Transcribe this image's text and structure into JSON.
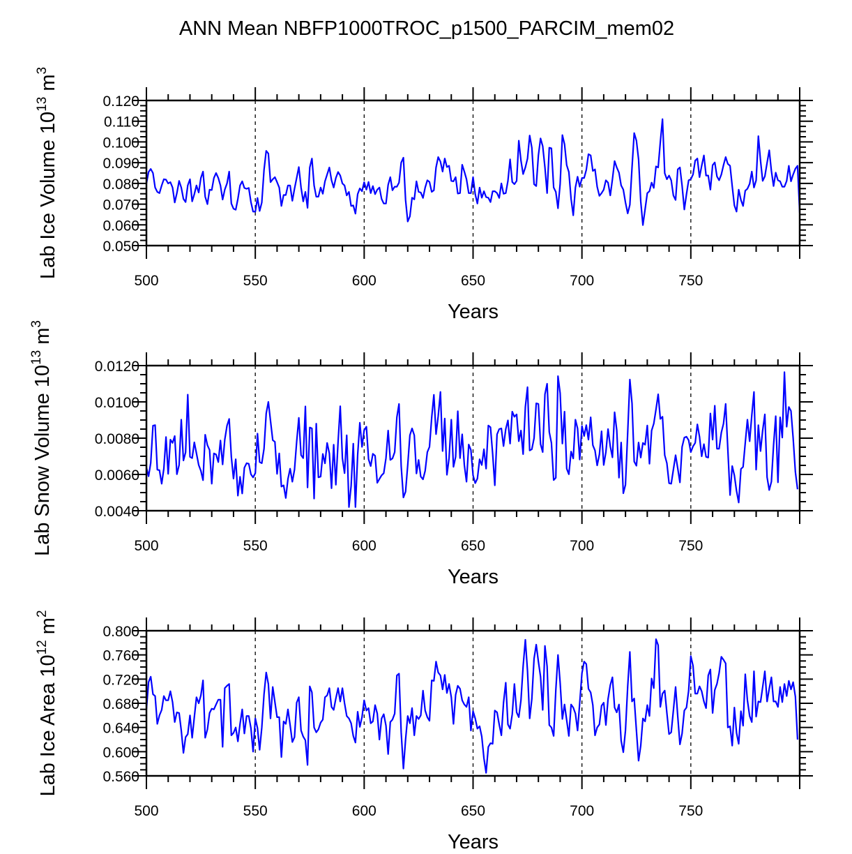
{
  "title": "ANN Mean NBFP1000TROC_p1500_PARCIM_mem02",
  "line_color": "#0000ff",
  "chart_data": [
    {
      "type": "line",
      "ylabel_main": "Lab Ice Volume 10",
      "ylabel_exp": "13",
      "ylabel_unit": " m",
      "ylabel_unit_exp": "3",
      "xlabel": "Years",
      "xlim": [
        500,
        800
      ],
      "ylim": [
        0.05,
        0.12
      ],
      "x_start": 500,
      "xticks": [
        "500",
        "550",
        "600",
        "650",
        "700",
        "750"
      ],
      "yticks": [
        "0.050",
        "0.060",
        "0.070",
        "0.080",
        "0.090",
        "0.100",
        "0.110",
        "0.120"
      ],
      "y_major": 0.01,
      "y_minor": 0.0025,
      "values": [
        0.08,
        0.0855,
        0.087,
        0.085,
        0.078,
        0.0759,
        0.0753,
        0.079,
        0.082,
        0.0818,
        0.08,
        0.0806,
        0.078,
        0.0708,
        0.0753,
        0.0812,
        0.078,
        0.0725,
        0.071,
        0.079,
        0.082,
        0.0713,
        0.0748,
        0.079,
        0.0756,
        0.0826,
        0.0857,
        0.0736,
        0.07,
        0.077,
        0.0768,
        0.0826,
        0.085,
        0.0826,
        0.079,
        0.0722,
        0.077,
        0.08,
        0.0857,
        0.0703,
        0.0678,
        0.0673,
        0.0725,
        0.079,
        0.081,
        0.0778,
        0.0774,
        0.0778,
        0.071,
        0.0664,
        0.0664,
        0.073,
        0.0667,
        0.0708,
        0.0865,
        0.0957,
        0.0944,
        0.0806,
        0.082,
        0.083,
        0.0806,
        0.078,
        0.0691,
        0.0744,
        0.0744,
        0.079,
        0.079,
        0.0716,
        0.0774,
        0.0826,
        0.0879,
        0.078,
        0.0713,
        0.0759,
        0.0682,
        0.0877,
        0.092,
        0.079,
        0.0736,
        0.0736,
        0.078,
        0.075,
        0.081,
        0.0843,
        0.0877,
        0.0815,
        0.078,
        0.0826,
        0.0855,
        0.0838,
        0.08,
        0.079,
        0.0742,
        0.0759,
        0.0691,
        0.0694,
        0.0654,
        0.0748,
        0.0776,
        0.0762,
        0.0806,
        0.077,
        0.0807,
        0.0753,
        0.0787,
        0.0748,
        0.077,
        0.078,
        0.0725,
        0.0703,
        0.0703,
        0.0793,
        0.083,
        0.0767,
        0.0784,
        0.0784,
        0.0804,
        0.09,
        0.0924,
        0.072,
        0.0616,
        0.0641,
        0.0731,
        0.0723,
        0.081,
        0.0759,
        0.0756,
        0.073,
        0.078,
        0.0815,
        0.0807,
        0.0759,
        0.0767,
        0.0877,
        0.0927,
        0.0905,
        0.0857,
        0.092,
        0.0879,
        0.0885,
        0.0812,
        0.081,
        0.083,
        0.0751,
        0.0753,
        0.089,
        0.0857,
        0.082,
        0.0753,
        0.0753,
        0.083,
        0.0748,
        0.0703,
        0.078,
        0.0731,
        0.0762,
        0.0734,
        0.0731,
        0.071,
        0.0762,
        0.0762,
        0.0753,
        0.073,
        0.08,
        0.075,
        0.0753,
        0.0812,
        0.0916,
        0.0807,
        0.0796,
        0.0812,
        0.1006,
        0.091,
        0.0845,
        0.0877,
        0.092,
        0.1031,
        0.0972,
        0.0796,
        0.0787,
        0.0935,
        0.1017,
        0.098,
        0.0877,
        0.0753,
        0.0972,
        0.0969,
        0.078,
        0.0759,
        0.068,
        0.0798,
        0.1033,
        0.0989,
        0.0888,
        0.0855,
        0.0725,
        0.0646,
        0.078,
        0.0832,
        0.0784,
        0.0826,
        0.0826,
        0.0865,
        0.0941,
        0.0935,
        0.086,
        0.0868,
        0.0784,
        0.074,
        0.0753,
        0.077,
        0.0815,
        0.0804,
        0.0742,
        0.082,
        0.0908,
        0.0877,
        0.0852,
        0.079,
        0.077,
        0.0708,
        0.0655,
        0.0697,
        0.0877,
        0.1043,
        0.1006,
        0.0916,
        0.0713,
        0.0599,
        0.0674,
        0.0753,
        0.0762,
        0.0804,
        0.0778,
        0.0882,
        0.0877,
        0.1,
        0.111,
        0.0849,
        0.082,
        0.0838,
        0.0815,
        0.0742,
        0.072,
        0.0868,
        0.0877,
        0.0789,
        0.0674,
        0.0748,
        0.0815,
        0.082,
        0.0843,
        0.091,
        0.092,
        0.083,
        0.0885,
        0.0935,
        0.0838,
        0.0838,
        0.077,
        0.0888,
        0.0901,
        0.0834,
        0.0815,
        0.0843,
        0.0888,
        0.0927,
        0.0894,
        0.0885,
        0.0787,
        0.0694,
        0.0664,
        0.077,
        0.072,
        0.0691,
        0.0765,
        0.0774,
        0.0798,
        0.0857,
        0.078,
        0.0815,
        0.1028,
        0.091,
        0.0812,
        0.0834,
        0.0899,
        0.096,
        0.086,
        0.0787,
        0.0852,
        0.0815,
        0.081,
        0.0784,
        0.0784,
        0.0812,
        0.0885,
        0.081,
        0.0843,
        0.0871,
        0.0885,
        0.0658
      ]
    },
    {
      "type": "line",
      "ylabel_main": "Lab Snow Volume 10",
      "ylabel_exp": "13",
      "ylabel_unit": " m",
      "ylabel_unit_exp": "3",
      "xlabel": "Years",
      "xlim": [
        500,
        800
      ],
      "ylim": [
        0.004,
        0.012
      ],
      "x_start": 500,
      "xticks": [
        "500",
        "550",
        "600",
        "650",
        "700",
        "750"
      ],
      "yticks": [
        "0.0040",
        "0.0060",
        "0.0080",
        "0.0100",
        "0.0120"
      ],
      "y_major": 0.002,
      "y_minor": 0.0005,
      "values": [
        0.00638,
        0.0059,
        0.00664,
        0.00869,
        0.00872,
        0.00626,
        0.00623,
        0.00549,
        0.00632,
        0.00806,
        0.00603,
        0.00792,
        0.00774,
        0.00812,
        0.00601,
        0.00652,
        0.00902,
        0.00677,
        0.00722,
        0.0104,
        0.00697,
        0.0069,
        0.00777,
        0.00716,
        0.00652,
        0.0062,
        0.00568,
        0.00819,
        0.00761,
        0.00735,
        0.00549,
        0.00716,
        0.0071,
        0.00668,
        0.00787,
        0.00655,
        0.00792,
        0.00869,
        0.00906,
        0.00697,
        0.00577,
        0.00684,
        0.00483,
        0.00587,
        0.00495,
        0.00637,
        0.00662,
        0.00659,
        0.00601,
        0.00584,
        0.00607,
        0.00825,
        0.00668,
        0.00662,
        0.00742,
        0.00936,
        0.01,
        0.00895,
        0.00789,
        0.0078,
        0.00603,
        0.00716,
        0.00533,
        0.0054,
        0.0047,
        0.00575,
        0.00632,
        0.0056,
        0.00626,
        0.0078,
        0.00912,
        0.00707,
        0.0069,
        0.00975,
        0.00528,
        0.00859,
        0.00854,
        0.00467,
        0.0088,
        0.00584,
        0.00588,
        0.00713,
        0.00661,
        0.00774,
        0.00716,
        0.00524,
        0.00764,
        0.00543,
        0.0078,
        0.00976,
        0.0069,
        0.00607,
        0.00816,
        0.0042,
        0.00537,
        0.0077,
        0.0042,
        0.0071,
        0.00885,
        0.00752,
        0.00844,
        0.00863,
        0.00684,
        0.00646,
        0.00714,
        0.00703,
        0.00554,
        0.00575,
        0.00595,
        0.00607,
        0.0069,
        0.00842,
        0.0068,
        0.00688,
        0.00723,
        0.00915,
        0.00989,
        0.00646,
        0.00473,
        0.00505,
        0.00652,
        0.00816,
        0.00854,
        0.00816,
        0.00605,
        0.0068,
        0.00588,
        0.00573,
        0.0062,
        0.00723,
        0.00752,
        0.00915,
        0.01039,
        0.00822,
        0.00921,
        0.01055,
        0.00729,
        0.00908,
        0.00598,
        0.0069,
        0.00902,
        0.00642,
        0.00697,
        0.00949,
        0.0069,
        0.00821,
        0.00652,
        0.0056,
        0.00765,
        0.00735,
        0.00595,
        0.00552,
        0.00577,
        0.00684,
        0.00652,
        0.00739,
        0.00632,
        0.0087,
        0.0086,
        0.00714,
        0.0054,
        0.00821,
        0.0085,
        0.00854,
        0.00756,
        0.0085,
        0.00898,
        0.0077,
        0.00946,
        0.00918,
        0.00931,
        0.00783,
        0.00842,
        0.00712,
        0.00972,
        0.01081,
        0.00732,
        0.00739,
        0.008,
        0.00992,
        0.00989,
        0.00767,
        0.00723,
        0.01042,
        0.011,
        0.00834,
        0.00774,
        0.00569,
        0.00582,
        0.01142,
        0.01048,
        0.0077,
        0.00946,
        0.00632,
        0.00601,
        0.00726,
        0.00688,
        0.00902,
        0.00854,
        0.00682,
        0.00867,
        0.00812,
        0.00872,
        0.00792,
        0.00915,
        0.00761,
        0.00732,
        0.0065,
        0.0071,
        0.00838,
        0.00652,
        0.00723,
        0.0085,
        0.00755,
        0.00694,
        0.00943,
        0.00844,
        0.00582,
        0.00776,
        0.00496,
        0.00543,
        0.00831,
        0.01123,
        0.00992,
        0.00671,
        0.00648,
        0.00776,
        0.00693,
        0.00774,
        0.00764,
        0.0087,
        0.00659,
        0.00842,
        0.0088,
        0.00959,
        0.01042,
        0.00906,
        0.00918,
        0.00706,
        0.00662,
        0.00552,
        0.00549,
        0.00626,
        0.00706,
        0.00633,
        0.00556,
        0.00752,
        0.00803,
        0.00808,
        0.00789,
        0.00723,
        0.00755,
        0.00774,
        0.00876,
        0.00808,
        0.007,
        0.00767,
        0.00697,
        0.00693,
        0.00936,
        0.00792,
        0.00979,
        0.00742,
        0.00742,
        0.00831,
        0.0088,
        0.00989,
        0.00739,
        0.00486,
        0.00646,
        0.00595,
        0.00509,
        0.00445,
        0.0063,
        0.00642,
        0.00774,
        0.00902,
        0.00783,
        0.00927,
        0.01055,
        0.00626,
        0.00872,
        0.00729,
        0.00844,
        0.00931,
        0.00585,
        0.00514,
        0.0056,
        0.00761,
        0.00921,
        0.00556,
        0.00915,
        0.00803,
        0.01164,
        0.00863,
        0.00972,
        0.0095,
        0.008,
        0.00614,
        0.00518
      ]
    },
    {
      "type": "line",
      "ylabel_main": "Lab Ice Area 10",
      "ylabel_exp": "12",
      "ylabel_unit": " m",
      "ylabel_unit_exp": "2",
      "xlabel": "Years",
      "xlim": [
        500,
        800
      ],
      "ylim": [
        0.56,
        0.8
      ],
      "x_start": 500,
      "xticks": [
        "500",
        "550",
        "600",
        "650",
        "700",
        "750"
      ],
      "yticks": [
        "0.560",
        "0.600",
        "0.640",
        "0.680",
        "0.720",
        "0.760",
        "0.800"
      ],
      "y_major": 0.04,
      "y_minor": 0.01,
      "values": [
        0.67,
        0.715,
        0.724,
        0.695,
        0.692,
        0.646,
        0.66,
        0.669,
        0.692,
        0.685,
        0.685,
        0.7,
        0.682,
        0.649,
        0.665,
        0.664,
        0.635,
        0.598,
        0.624,
        0.629,
        0.66,
        0.623,
        0.657,
        0.69,
        0.68,
        0.693,
        0.718,
        0.623,
        0.637,
        0.664,
        0.671,
        0.67,
        0.678,
        0.686,
        0.686,
        0.608,
        0.705,
        0.709,
        0.712,
        0.627,
        0.631,
        0.64,
        0.617,
        0.646,
        0.67,
        0.63,
        0.659,
        0.659,
        0.639,
        0.6,
        0.655,
        0.639,
        0.603,
        0.64,
        0.695,
        0.731,
        0.712,
        0.655,
        0.707,
        0.682,
        0.657,
        0.657,
        0.591,
        0.65,
        0.646,
        0.67,
        0.644,
        0.616,
        0.624,
        0.681,
        0.69,
        0.635,
        0.625,
        0.619,
        0.578,
        0.708,
        0.698,
        0.64,
        0.632,
        0.637,
        0.648,
        0.653,
        0.69,
        0.693,
        0.705,
        0.674,
        0.669,
        0.688,
        0.705,
        0.683,
        0.705,
        0.68,
        0.659,
        0.655,
        0.647,
        0.626,
        0.615,
        0.666,
        0.641,
        0.657,
        0.685,
        0.668,
        0.672,
        0.647,
        0.65,
        0.677,
        0.663,
        0.62,
        0.655,
        0.662,
        0.643,
        0.596,
        0.649,
        0.653,
        0.663,
        0.726,
        0.729,
        0.632,
        0.572,
        0.62,
        0.659,
        0.647,
        0.672,
        0.627,
        0.659,
        0.654,
        0.66,
        0.701,
        0.668,
        0.657,
        0.651,
        0.718,
        0.717,
        0.749,
        0.731,
        0.726,
        0.703,
        0.727,
        0.697,
        0.712,
        0.69,
        0.646,
        0.694,
        0.709,
        0.704,
        0.685,
        0.678,
        0.674,
        0.69,
        0.635,
        0.667,
        0.655,
        0.638,
        0.642,
        0.625,
        0.589,
        0.565,
        0.608,
        0.614,
        0.613,
        0.668,
        0.665,
        0.645,
        0.627,
        0.681,
        0.714,
        0.645,
        0.638,
        0.662,
        0.712,
        0.665,
        0.657,
        0.685,
        0.741,
        0.785,
        0.733,
        0.655,
        0.687,
        0.754,
        0.777,
        0.749,
        0.724,
        0.669,
        0.775,
        0.741,
        0.644,
        0.64,
        0.626,
        0.702,
        0.76,
        0.714,
        0.654,
        0.678,
        0.652,
        0.626,
        0.678,
        0.673,
        0.663,
        0.635,
        0.681,
        0.73,
        0.749,
        0.745,
        0.704,
        0.698,
        0.677,
        0.627,
        0.64,
        0.645,
        0.676,
        0.681,
        0.644,
        0.687,
        0.71,
        0.723,
        0.673,
        0.665,
        0.678,
        0.618,
        0.599,
        0.635,
        0.708,
        0.765,
        0.683,
        0.688,
        0.635,
        0.585,
        0.61,
        0.655,
        0.65,
        0.677,
        0.659,
        0.721,
        0.705,
        0.786,
        0.776,
        0.674,
        0.696,
        0.701,
        0.664,
        0.629,
        0.632,
        0.668,
        0.707,
        0.658,
        0.612,
        0.63,
        0.668,
        0.673,
        0.701,
        0.758,
        0.742,
        0.696,
        0.696,
        0.708,
        0.7,
        0.683,
        0.672,
        0.726,
        0.736,
        0.664,
        0.702,
        0.712,
        0.73,
        0.757,
        0.752,
        0.746,
        0.64,
        0.642,
        0.61,
        0.673,
        0.631,
        0.613,
        0.667,
        0.643,
        0.728,
        0.685,
        0.659,
        0.649,
        0.733,
        0.658,
        0.683,
        0.682,
        0.707,
        0.733,
        0.683,
        0.704,
        0.723,
        0.683,
        0.683,
        0.674,
        0.707,
        0.682,
        0.712,
        0.692,
        0.717,
        0.703,
        0.715,
        0.691,
        0.62
      ]
    }
  ]
}
